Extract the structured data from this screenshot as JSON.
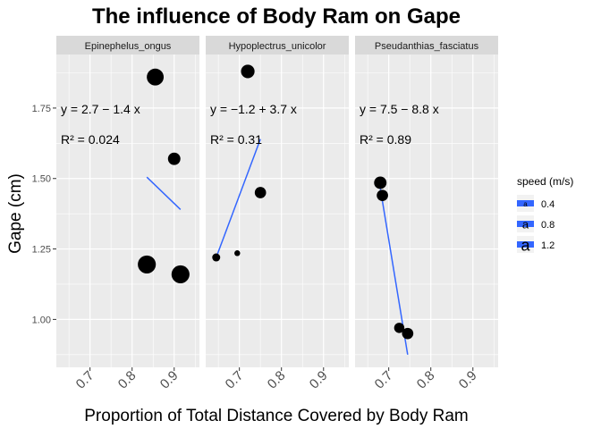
{
  "chart_data": {
    "type": "scatter",
    "title": "The influence of Body Ram on Gape",
    "xlabel": "Proportion of Total Distance Covered by Body Ram",
    "ylabel": "Gape (cm)",
    "xlim": [
      0.62,
      0.96
    ],
    "ylim": [
      0.83,
      1.94
    ],
    "x_ticks": [
      0.7,
      0.8,
      0.9
    ],
    "x_tick_labels": [
      "0.7",
      "0.8",
      "0.9"
    ],
    "y_ticks": [
      1.0,
      1.25,
      1.5,
      1.75
    ],
    "y_tick_labels": [
      "1.00",
      "1.25",
      "1.50",
      "1.75"
    ],
    "grid": true,
    "legend": {
      "title": "speed (m/s)",
      "placement": "right",
      "entries": [
        "0.4",
        "0.8",
        "1.2"
      ],
      "sizes": [
        0.4,
        0.8,
        1.2
      ]
    },
    "facets": [
      {
        "name": "Epinephelus_ongus",
        "points": [
          {
            "x": 0.855,
            "y": 1.86,
            "size": 1.2
          },
          {
            "x": 0.9,
            "y": 1.57,
            "size": 0.8
          },
          {
            "x": 0.835,
            "y": 1.195,
            "size": 1.3
          },
          {
            "x": 0.915,
            "y": 1.16,
            "size": 1.3
          }
        ],
        "fit": {
          "x": [
            0.835,
            0.915
          ],
          "y": [
            1.505,
            1.39
          ]
        },
        "equation": "y = 2.7 − 1.4 x",
        "r2": "R² = 0.024"
      },
      {
        "name": "Hypoplectrus_unicolor",
        "points": [
          {
            "x": 0.72,
            "y": 1.88,
            "size": 0.9
          },
          {
            "x": 0.75,
            "y": 1.45,
            "size": 0.7
          },
          {
            "x": 0.645,
            "y": 1.22,
            "size": 0.4
          },
          {
            "x": 0.695,
            "y": 1.235,
            "size": 0.2
          }
        ],
        "fit": {
          "x": [
            0.645,
            0.75
          ],
          "y": [
            1.22,
            1.64
          ]
        },
        "equation": "y = −1.2 + 3.7 x",
        "r2": "R² = 0.31"
      },
      {
        "name": "Pseudanthias_fasciatus",
        "points": [
          {
            "x": 0.68,
            "y": 1.485,
            "size": 0.8
          },
          {
            "x": 0.685,
            "y": 1.44,
            "size": 0.7
          },
          {
            "x": 0.725,
            "y": 0.97,
            "size": 0.6
          },
          {
            "x": 0.745,
            "y": 0.95,
            "size": 0.7
          }
        ],
        "fit": {
          "x": [
            0.68,
            0.745
          ],
          "y": [
            1.465,
            0.875
          ]
        },
        "equation": "y = 7.5 − 8.8 x",
        "r2": "R² = 0.89"
      }
    ],
    "colors": {
      "panel_bg": "#ebebeb",
      "strip_bg": "#d9d9d9",
      "grid": "#ffffff",
      "point": "#000000",
      "fit_line": "#3366ff"
    }
  }
}
